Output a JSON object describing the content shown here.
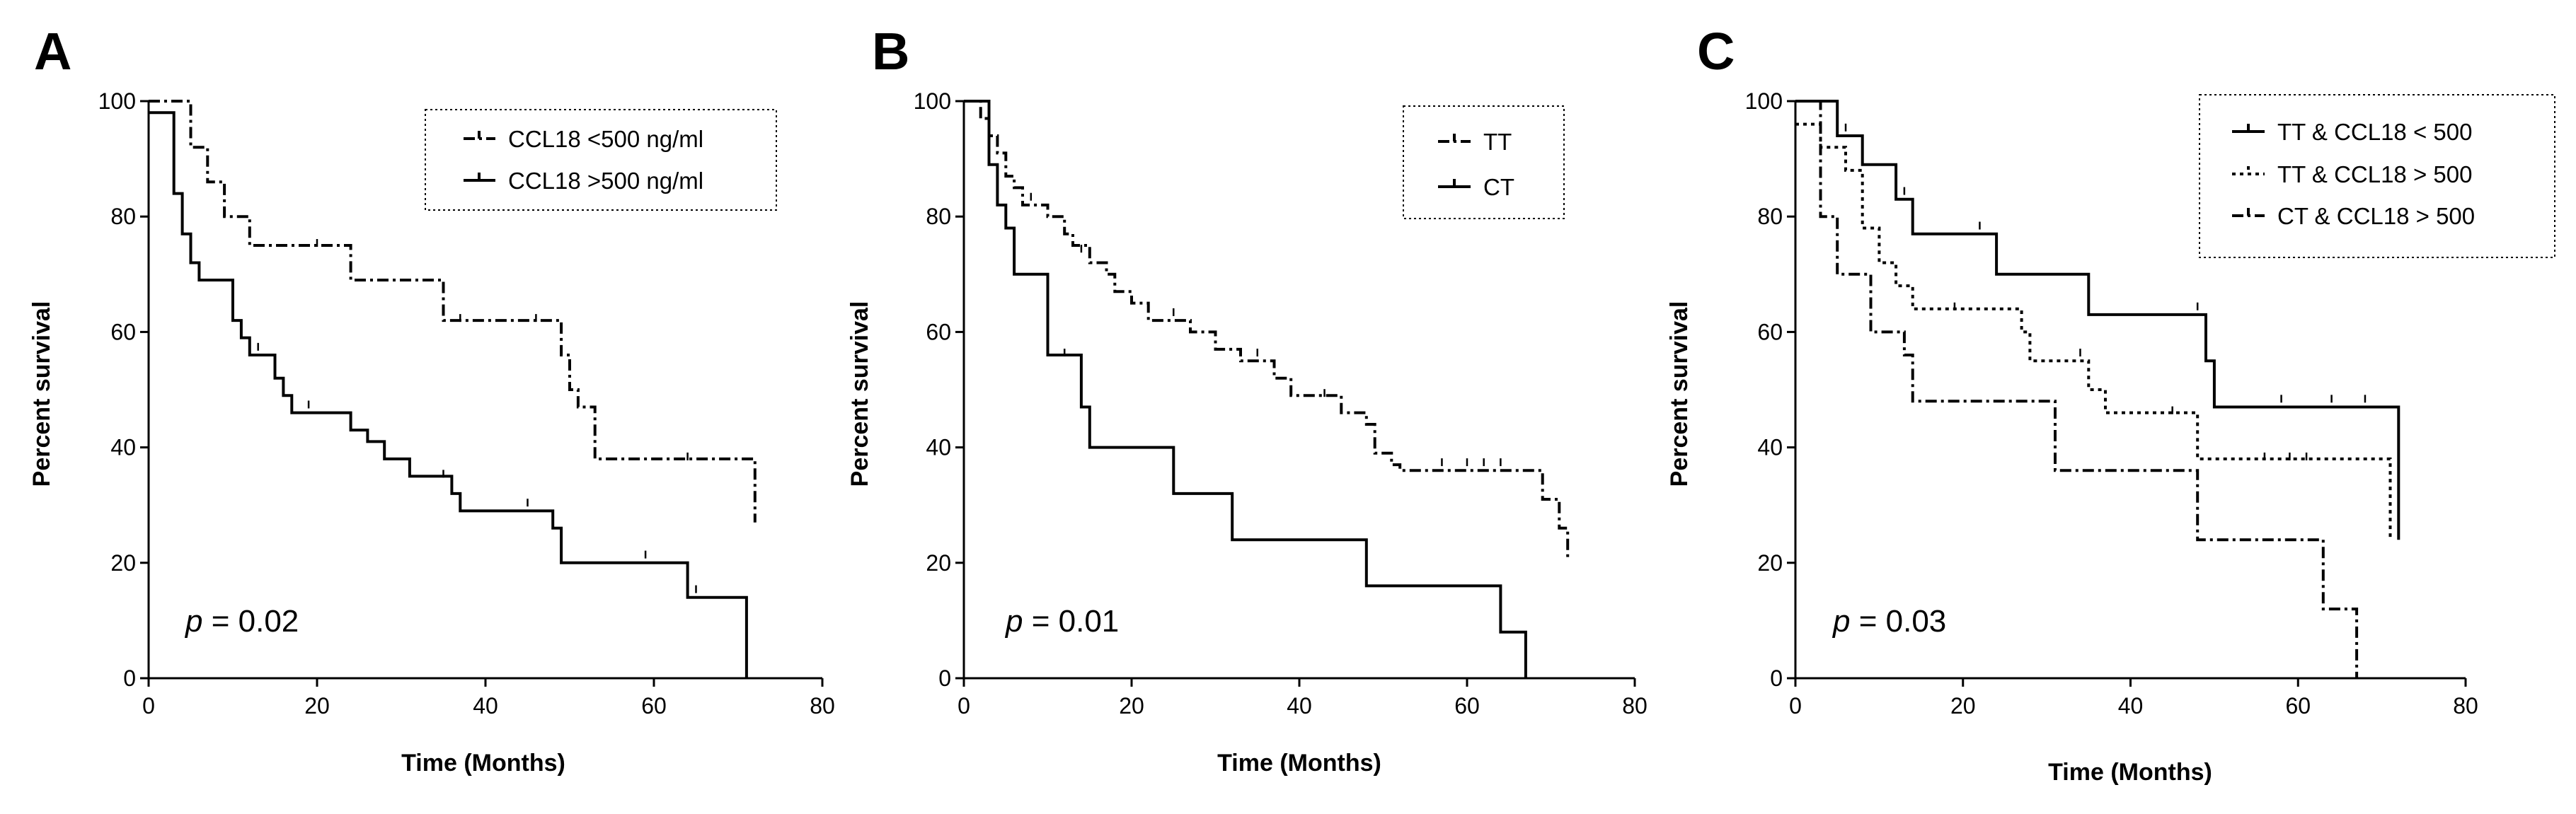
{
  "chart_data": [
    {
      "type": "line",
      "panel": "A",
      "xlabel": "Time (Months)",
      "ylabel": "Percent survival",
      "xlim": [
        0,
        80
      ],
      "ylim": [
        0,
        100
      ],
      "xticks": [
        "0",
        "20",
        "40",
        "60",
        "80"
      ],
      "yticks": [
        "0",
        "20",
        "40",
        "60",
        "80",
        "100"
      ],
      "legend": "top-right",
      "p_prefix": "p",
      "p_text": " = 0.02",
      "series": [
        {
          "name": "CCL18 <500 ng/ml",
          "style": "dashdot",
          "points": [
            [
              0,
              100
            ],
            [
              5,
              100
            ],
            [
              5,
              92
            ],
            [
              7,
              92
            ],
            [
              7,
              86
            ],
            [
              9,
              86
            ],
            [
              9,
              80
            ],
            [
              12,
              80
            ],
            [
              12,
              75
            ],
            [
              24,
              75
            ],
            [
              24,
              69
            ],
            [
              35,
              69
            ],
            [
              35,
              62
            ],
            [
              49,
              62
            ],
            [
              49,
              56
            ],
            [
              50,
              56
            ],
            [
              50,
              50
            ],
            [
              51,
              50
            ],
            [
              51,
              47
            ],
            [
              53,
              47
            ],
            [
              53,
              38
            ],
            [
              72,
              38
            ],
            [
              72,
              27
            ]
          ],
          "censors": [
            [
              20,
              75
            ],
            [
              37,
              62
            ],
            [
              46,
              62
            ],
            [
              64,
              38
            ]
          ]
        },
        {
          "name": "CCL18 >500 ng/ml",
          "style": "solid",
          "points": [
            [
              0,
              98
            ],
            [
              3,
              98
            ],
            [
              3,
              84
            ],
            [
              4,
              84
            ],
            [
              4,
              77
            ],
            [
              5,
              77
            ],
            [
              5,
              72
            ],
            [
              6,
              72
            ],
            [
              6,
              69
            ],
            [
              10,
              69
            ],
            [
              10,
              62
            ],
            [
              11,
              62
            ],
            [
              11,
              59
            ],
            [
              12,
              59
            ],
            [
              12,
              56
            ],
            [
              15,
              56
            ],
            [
              15,
              52
            ],
            [
              16,
              52
            ],
            [
              16,
              49
            ],
            [
              17,
              49
            ],
            [
              17,
              46
            ],
            [
              24,
              46
            ],
            [
              24,
              43
            ],
            [
              26,
              43
            ],
            [
              26,
              41
            ],
            [
              28,
              41
            ],
            [
              28,
              38
            ],
            [
              31,
              38
            ],
            [
              31,
              35
            ],
            [
              36,
              35
            ],
            [
              36,
              32
            ],
            [
              37,
              32
            ],
            [
              37,
              29
            ],
            [
              48,
              29
            ],
            [
              48,
              26
            ],
            [
              49,
              26
            ],
            [
              49,
              20
            ],
            [
              64,
              20
            ],
            [
              64,
              14
            ],
            [
              71,
              14
            ],
            [
              71,
              0
            ]
          ],
          "censors": [
            [
              13,
              57
            ],
            [
              19,
              47
            ],
            [
              35,
              35
            ],
            [
              45,
              30
            ],
            [
              59,
              21
            ],
            [
              65,
              15
            ]
          ]
        }
      ]
    },
    {
      "type": "line",
      "panel": "B",
      "xlabel": "Time (Months)",
      "ylabel": "Percent survival",
      "xlim": [
        0,
        80
      ],
      "ylim": [
        0,
        100
      ],
      "xticks": [
        "0",
        "20",
        "40",
        "60",
        "80"
      ],
      "yticks": [
        "0",
        "20",
        "40",
        "60",
        "80",
        "100"
      ],
      "legend": "top-right",
      "p_prefix": "p",
      "p_text": " = 0.01",
      "series": [
        {
          "name": "TT",
          "style": "dashdot",
          "points": [
            [
              0,
              100
            ],
            [
              2,
              100
            ],
            [
              2,
              97
            ],
            [
              3,
              97
            ],
            [
              3,
              94
            ],
            [
              4,
              94
            ],
            [
              4,
              91
            ],
            [
              5,
              91
            ],
            [
              5,
              87
            ],
            [
              6,
              87
            ],
            [
              6,
              85
            ],
            [
              7,
              85
            ],
            [
              7,
              82
            ],
            [
              10,
              82
            ],
            [
              10,
              80
            ],
            [
              12,
              80
            ],
            [
              12,
              77
            ],
            [
              13,
              77
            ],
            [
              13,
              75
            ],
            [
              15,
              75
            ],
            [
              15,
              72
            ],
            [
              17,
              72
            ],
            [
              17,
              70
            ],
            [
              18,
              70
            ],
            [
              18,
              67
            ],
            [
              20,
              67
            ],
            [
              20,
              65
            ],
            [
              22,
              65
            ],
            [
              22,
              62
            ],
            [
              27,
              62
            ],
            [
              27,
              60
            ],
            [
              30,
              60
            ],
            [
              30,
              57
            ],
            [
              33,
              57
            ],
            [
              33,
              55
            ],
            [
              37,
              55
            ],
            [
              37,
              52
            ],
            [
              39,
              52
            ],
            [
              39,
              49
            ],
            [
              45,
              49
            ],
            [
              45,
              46
            ],
            [
              48,
              46
            ],
            [
              48,
              44
            ],
            [
              49,
              44
            ],
            [
              49,
              39
            ],
            [
              51,
              39
            ],
            [
              51,
              37
            ],
            [
              52,
              37
            ],
            [
              52,
              36
            ],
            [
              69,
              36
            ],
            [
              69,
              31
            ],
            [
              71,
              31
            ],
            [
              71,
              26
            ],
            [
              72,
              26
            ],
            [
              72,
              21
            ]
          ],
          "censors": [
            [
              8,
              83
            ],
            [
              14,
              74
            ],
            [
              25,
              63
            ],
            [
              35,
              56
            ],
            [
              43,
              49
            ],
            [
              57,
              37
            ],
            [
              60,
              37
            ],
            [
              62,
              37
            ],
            [
              64,
              37
            ]
          ]
        },
        {
          "name": "CT",
          "style": "solid",
          "points": [
            [
              0,
              100
            ],
            [
              3,
              100
            ],
            [
              3,
              89
            ],
            [
              4,
              89
            ],
            [
              4,
              82
            ],
            [
              5,
              82
            ],
            [
              5,
              78
            ],
            [
              6,
              78
            ],
            [
              6,
              70
            ],
            [
              10,
              70
            ],
            [
              10,
              56
            ],
            [
              14,
              56
            ],
            [
              14,
              47
            ],
            [
              15,
              47
            ],
            [
              15,
              40
            ],
            [
              25,
              40
            ],
            [
              25,
              32
            ],
            [
              32,
              32
            ],
            [
              32,
              24
            ],
            [
              48,
              24
            ],
            [
              48,
              16
            ],
            [
              64,
              16
            ],
            [
              64,
              8
            ],
            [
              67,
              8
            ],
            [
              67,
              0
            ]
          ],
          "censors": [
            [
              12,
              56
            ]
          ]
        }
      ]
    },
    {
      "type": "line",
      "panel": "C",
      "xlabel": "Time (Months)",
      "ylabel": "Percent survival",
      "xlim": [
        0,
        80
      ],
      "ylim": [
        0,
        100
      ],
      "xticks": [
        "0",
        "20",
        "40",
        "60",
        "80"
      ],
      "yticks": [
        "0",
        "20",
        "40",
        "60",
        "80",
        "100"
      ],
      "legend": "top-right",
      "p_prefix": "p",
      "p_text": " = 0.03",
      "series": [
        {
          "name": "TT & CCL18 < 500",
          "style": "solid",
          "points": [
            [
              0,
              100
            ],
            [
              5,
              100
            ],
            [
              5,
              94
            ],
            [
              8,
              94
            ],
            [
              8,
              89
            ],
            [
              12,
              89
            ],
            [
              12,
              83
            ],
            [
              14,
              83
            ],
            [
              14,
              77
            ],
            [
              24,
              77
            ],
            [
              24,
              70
            ],
            [
              35,
              70
            ],
            [
              35,
              63
            ],
            [
              49,
              63
            ],
            [
              49,
              55
            ],
            [
              50,
              55
            ],
            [
              50,
              47
            ],
            [
              72,
              47
            ],
            [
              72,
              24
            ]
          ],
          "censors": [
            [
              6,
              95
            ],
            [
              13,
              84
            ],
            [
              22,
              78
            ],
            [
              48,
              64
            ],
            [
              58,
              48
            ],
            [
              64,
              48
            ],
            [
              68,
              48
            ]
          ]
        },
        {
          "name": "TT & CCL18 > 500",
          "style": "dotted",
          "points": [
            [
              0,
              96
            ],
            [
              3,
              96
            ],
            [
              3,
              92
            ],
            [
              6,
              92
            ],
            [
              6,
              88
            ],
            [
              8,
              88
            ],
            [
              8,
              78
            ],
            [
              10,
              78
            ],
            [
              10,
              72
            ],
            [
              12,
              72
            ],
            [
              12,
              68
            ],
            [
              14,
              68
            ],
            [
              14,
              64
            ],
            [
              27,
              64
            ],
            [
              27,
              60
            ],
            [
              28,
              60
            ],
            [
              28,
              55
            ],
            [
              35,
              55
            ],
            [
              35,
              50
            ],
            [
              37,
              50
            ],
            [
              37,
              46
            ],
            [
              48,
              46
            ],
            [
              48,
              38
            ],
            [
              71,
              38
            ],
            [
              71,
              24
            ]
          ],
          "censors": [
            [
              19,
              64
            ],
            [
              34,
              56
            ],
            [
              45,
              46
            ],
            [
              56,
              38
            ],
            [
              59,
              38
            ],
            [
              61,
              38
            ]
          ]
        },
        {
          "name": "CT & CCL18 > 500",
          "style": "dashdot",
          "points": [
            [
              0,
              100
            ],
            [
              3,
              100
            ],
            [
              3,
              80
            ],
            [
              5,
              80
            ],
            [
              5,
              70
            ],
            [
              9,
              70
            ],
            [
              9,
              60
            ],
            [
              13,
              60
            ],
            [
              13,
              56
            ],
            [
              14,
              56
            ],
            [
              14,
              48
            ],
            [
              31,
              48
            ],
            [
              31,
              36
            ],
            [
              48,
              36
            ],
            [
              48,
              24
            ],
            [
              63,
              24
            ],
            [
              63,
              12
            ],
            [
              67,
              12
            ],
            [
              67,
              0
            ]
          ],
          "censors": []
        }
      ]
    }
  ]
}
